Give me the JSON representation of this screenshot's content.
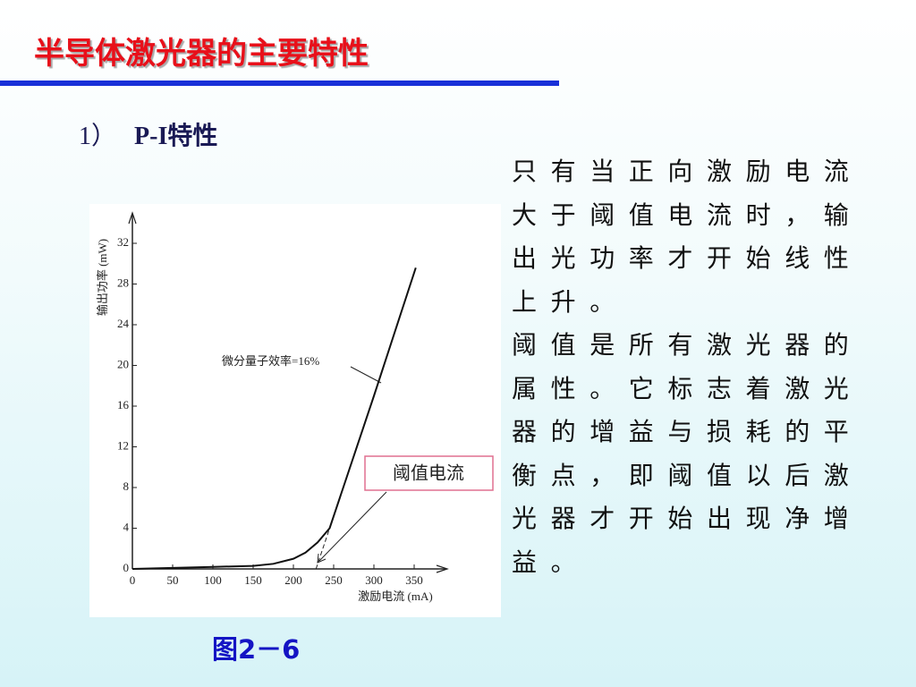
{
  "header": {
    "title": "半导体激光器的主要特性"
  },
  "section": {
    "number": "1）",
    "heading": "P-I特性"
  },
  "paragraphs": [
    "只有当正向激励电流大于阈值电流时，输出光功率才开始线性上升。",
    "阈值是所有激光器的属性。它标志着激光器的增益与损耗的平衡点，即阈值以后激光器才开始出现净增益。"
  ],
  "figure_caption": "图2－6",
  "callout": "阈值电流",
  "chart_data": {
    "type": "line",
    "x_label": "激励电流 (mA)",
    "y_label": "输出功率 (mW)",
    "annotation": "微分量子效率=16%",
    "x": [
      0,
      50,
      100,
      150,
      175,
      200,
      215,
      230,
      245,
      300,
      352
    ],
    "values": [
      0,
      0.1,
      0.2,
      0.3,
      0.5,
      1,
      1.6,
      2.6,
      4,
      17,
      29.6
    ],
    "color": "#111111",
    "xlim": [
      0,
      380
    ],
    "xticks": [
      0,
      50,
      100,
      150,
      200,
      250,
      300,
      350
    ],
    "ylim": [
      0,
      34
    ],
    "yticks": [
      0,
      4,
      8,
      12,
      16,
      20,
      24,
      28,
      32
    ]
  }
}
